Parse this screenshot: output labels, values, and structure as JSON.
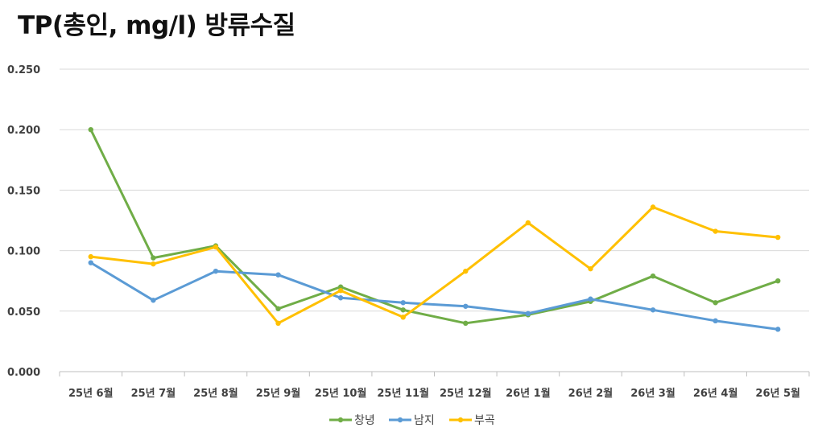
{
  "chart_data": {
    "type": "line",
    "title": "TP(총인, mg/l) 방류수질",
    "categories": [
      "25년 6월",
      "25년 7월",
      "25년 8월",
      "25년 9월",
      "25년 10월",
      "25년 11월",
      "25년 12월",
      "26년 1월",
      "26년 2월",
      "26년 3월",
      "26년 4월",
      "26년 5월"
    ],
    "series": [
      {
        "name": "창녕",
        "color": "#70AD47",
        "values": [
          0.2,
          0.094,
          0.104,
          0.052,
          0.07,
          0.051,
          0.04,
          0.047,
          0.058,
          0.079,
          0.057,
          0.075
        ]
      },
      {
        "name": "남지",
        "color": "#5B9BD5",
        "values": [
          0.09,
          0.059,
          0.083,
          0.08,
          0.061,
          0.057,
          0.054,
          0.048,
          0.06,
          0.051,
          0.042,
          0.035
        ]
      },
      {
        "name": "부곡",
        "color": "#FFC000",
        "values": [
          0.095,
          0.089,
          0.103,
          0.04,
          0.067,
          0.045,
          0.083,
          0.123,
          0.085,
          0.136,
          0.116,
          0.111
        ]
      }
    ],
    "yticks": [
      "0.000",
      "0.050",
      "0.100",
      "0.150",
      "0.200",
      "0.250"
    ],
    "ylim": [
      0,
      0.25
    ],
    "grid": true,
    "legend": "bottom"
  }
}
